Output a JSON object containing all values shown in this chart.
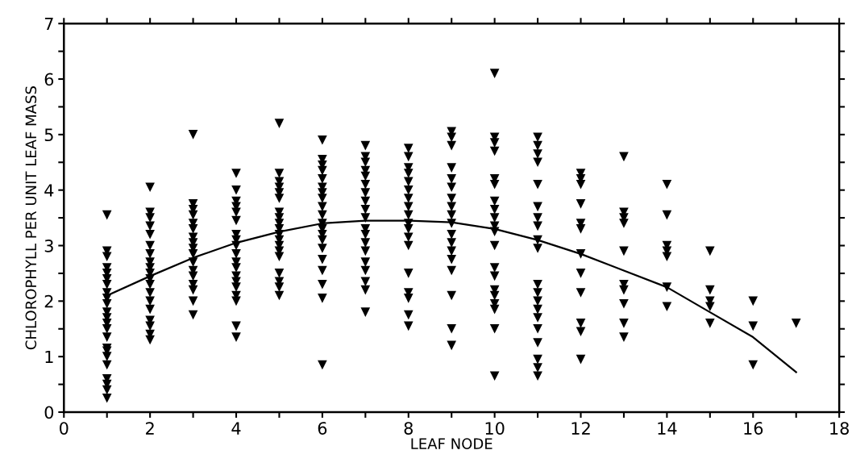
{
  "chart_data": {
    "type": "scatter",
    "xlabel": "LEAF NODE",
    "ylabel": "CHLOROPHYLL PER UNIT LEAF MASS",
    "xlim": [
      0,
      18
    ],
    "ylim": [
      0,
      7
    ],
    "xticks": [
      0,
      {
        "value": 1,
        "label": null
      },
      2,
      {
        "value": 3,
        "label": null
      },
      4,
      {
        "value": 5,
        "label": null
      },
      6,
      {
        "value": 7,
        "label": null
      },
      8,
      {
        "value": 9,
        "label": null
      },
      10,
      {
        "value": 11,
        "label": null
      },
      12,
      {
        "value": 13,
        "label": null
      },
      14,
      {
        "value": 15,
        "label": null
      },
      16,
      {
        "value": 17,
        "label": null
      },
      18
    ],
    "yticks": [
      0,
      {
        "value": 0.5,
        "label": null
      },
      1,
      {
        "value": 1.5,
        "label": null
      },
      2,
      {
        "value": 2.5,
        "label": null
      },
      3,
      {
        "value": 3.5,
        "label": null
      },
      4,
      {
        "value": 4.5,
        "label": null
      },
      5,
      {
        "value": 5.5,
        "label": null
      },
      6,
      {
        "value": 6.5,
        "label": null
      },
      7
    ],
    "grid": false,
    "legend": false,
    "series": [
      {
        "color": "#000000",
        "marker": "triangle",
        "x": [
          1,
          1,
          1,
          1,
          1,
          1,
          1,
          1,
          1,
          1,
          1,
          1,
          1,
          1,
          1,
          1,
          1,
          1,
          1,
          1,
          1,
          1,
          1,
          2,
          2,
          2,
          2,
          2,
          2,
          2,
          2,
          2,
          2,
          2,
          2,
          2,
          2,
          2,
          2,
          2,
          2,
          2,
          3,
          3,
          3,
          3,
          3,
          3,
          3,
          3,
          3,
          3,
          3,
          3,
          3,
          3,
          3,
          3,
          3,
          4,
          4,
          4,
          4,
          4,
          4,
          4,
          4,
          4,
          4,
          4,
          4,
          4,
          4,
          4,
          4,
          4,
          4,
          4,
          5,
          5,
          5,
          5,
          5,
          5,
          5,
          5,
          5,
          5,
          5,
          5,
          5,
          5,
          5,
          5,
          5,
          5,
          5,
          6,
          6,
          6,
          6,
          6,
          6,
          6,
          6,
          6,
          6,
          6,
          6,
          6,
          6,
          6,
          6,
          6,
          6,
          6,
          6,
          7,
          7,
          7,
          7,
          7,
          7,
          7,
          7,
          7,
          7,
          7,
          7,
          7,
          7,
          7,
          7,
          7,
          7,
          7,
          8,
          8,
          8,
          8,
          8,
          8,
          8,
          8,
          8,
          8,
          8,
          8,
          8,
          8,
          8,
          8,
          8,
          8,
          9,
          9,
          9,
          9,
          9,
          9,
          9,
          9,
          9,
          9,
          9,
          9,
          9,
          9,
          9,
          9,
          9,
          9,
          10,
          10,
          10,
          10,
          10,
          10,
          10,
          10,
          10,
          10,
          10,
          10,
          10,
          10,
          10,
          10,
          10,
          10,
          10,
          10,
          11,
          11,
          11,
          11,
          11,
          11,
          11,
          11,
          11,
          11,
          11,
          11,
          11,
          11,
          11,
          11,
          11,
          11,
          11,
          11,
          12,
          12,
          12,
          12,
          12,
          12,
          12,
          12,
          12,
          12,
          12,
          12,
          13,
          13,
          13,
          13,
          13,
          13,
          13,
          13,
          13,
          13,
          14,
          14,
          14,
          14,
          14,
          14,
          14,
          15,
          15,
          15,
          15,
          15,
          16,
          16,
          16,
          17
        ],
        "values": [
          3.55,
          2.9,
          2.8,
          2.6,
          2.5,
          2.4,
          2.3,
          2.15,
          2.05,
          1.95,
          1.8,
          1.7,
          1.6,
          1.5,
          1.35,
          1.15,
          1.1,
          1.0,
          0.85,
          0.6,
          0.5,
          0.4,
          0.25,
          4.05,
          3.6,
          3.5,
          3.35,
          3.2,
          3.0,
          2.85,
          2.7,
          2.6,
          2.5,
          2.4,
          2.3,
          2.15,
          2.0,
          1.85,
          1.65,
          1.55,
          1.4,
          1.3,
          5.0,
          3.75,
          3.65,
          3.55,
          3.4,
          3.3,
          3.15,
          3.05,
          2.95,
          2.85,
          2.7,
          2.55,
          2.45,
          2.3,
          2.2,
          2.0,
          1.75,
          4.3,
          4.0,
          3.8,
          3.7,
          3.6,
          3.45,
          3.2,
          3.1,
          3.0,
          2.85,
          2.7,
          2.6,
          2.45,
          2.35,
          2.25,
          2.1,
          2.0,
          1.55,
          1.35,
          5.2,
          4.3,
          4.15,
          4.05,
          3.95,
          3.85,
          3.6,
          3.5,
          3.4,
          3.3,
          3.2,
          3.1,
          3.0,
          2.9,
          2.8,
          2.5,
          2.35,
          2.25,
          2.1,
          4.9,
          4.55,
          4.45,
          4.35,
          4.2,
          4.05,
          3.95,
          3.85,
          3.7,
          3.55,
          3.4,
          3.3,
          3.2,
          3.1,
          2.95,
          2.75,
          2.55,
          2.3,
          2.05,
          0.85,
          4.8,
          4.6,
          4.5,
          4.35,
          4.25,
          4.1,
          3.95,
          3.8,
          3.65,
          3.5,
          3.3,
          3.2,
          3.05,
          2.9,
          2.7,
          2.55,
          2.35,
          2.2,
          1.8,
          4.75,
          4.6,
          4.4,
          4.3,
          4.15,
          4.0,
          3.85,
          3.7,
          3.55,
          3.4,
          3.3,
          3.15,
          3.0,
          2.5,
          2.15,
          2.05,
          1.75,
          1.55,
          5.05,
          4.95,
          4.8,
          4.4,
          4.2,
          4.05,
          3.85,
          3.7,
          3.55,
          3.4,
          3.2,
          3.05,
          2.9,
          2.75,
          2.55,
          2.1,
          1.5,
          1.2,
          6.1,
          4.95,
          4.85,
          4.7,
          4.2,
          4.1,
          3.8,
          3.65,
          3.5,
          3.35,
          3.25,
          3.0,
          2.6,
          2.45,
          2.2,
          2.1,
          1.95,
          1.85,
          1.5,
          0.65,
          4.95,
          4.8,
          4.65,
          4.5,
          4.1,
          3.7,
          3.5,
          3.35,
          3.1,
          2.95,
          2.3,
          2.15,
          2.0,
          1.85,
          1.7,
          1.5,
          1.25,
          0.95,
          0.8,
          0.65,
          4.3,
          4.2,
          4.1,
          3.75,
          3.4,
          3.3,
          2.85,
          2.5,
          2.15,
          1.6,
          1.45,
          0.95,
          4.6,
          3.6,
          3.5,
          3.4,
          2.9,
          2.3,
          2.2,
          1.95,
          1.6,
          1.35,
          4.1,
          3.55,
          3.0,
          2.9,
          2.8,
          2.25,
          1.9,
          2.9,
          2.2,
          2.0,
          1.9,
          1.6,
          2.0,
          1.55,
          0.85,
          1.6
        ]
      },
      {
        "type": "line",
        "color": "#000000",
        "marker": "none",
        "line_style": "solid",
        "x": [
          1,
          2,
          3,
          4,
          5,
          6,
          7,
          8,
          9,
          10,
          11,
          12,
          13,
          14,
          15,
          16,
          17
        ],
        "values": [
          2.1,
          2.45,
          2.78,
          3.05,
          3.25,
          3.4,
          3.45,
          3.45,
          3.42,
          3.3,
          3.1,
          2.85,
          2.55,
          2.25,
          1.8,
          1.35,
          0.72
        ]
      }
    ]
  }
}
